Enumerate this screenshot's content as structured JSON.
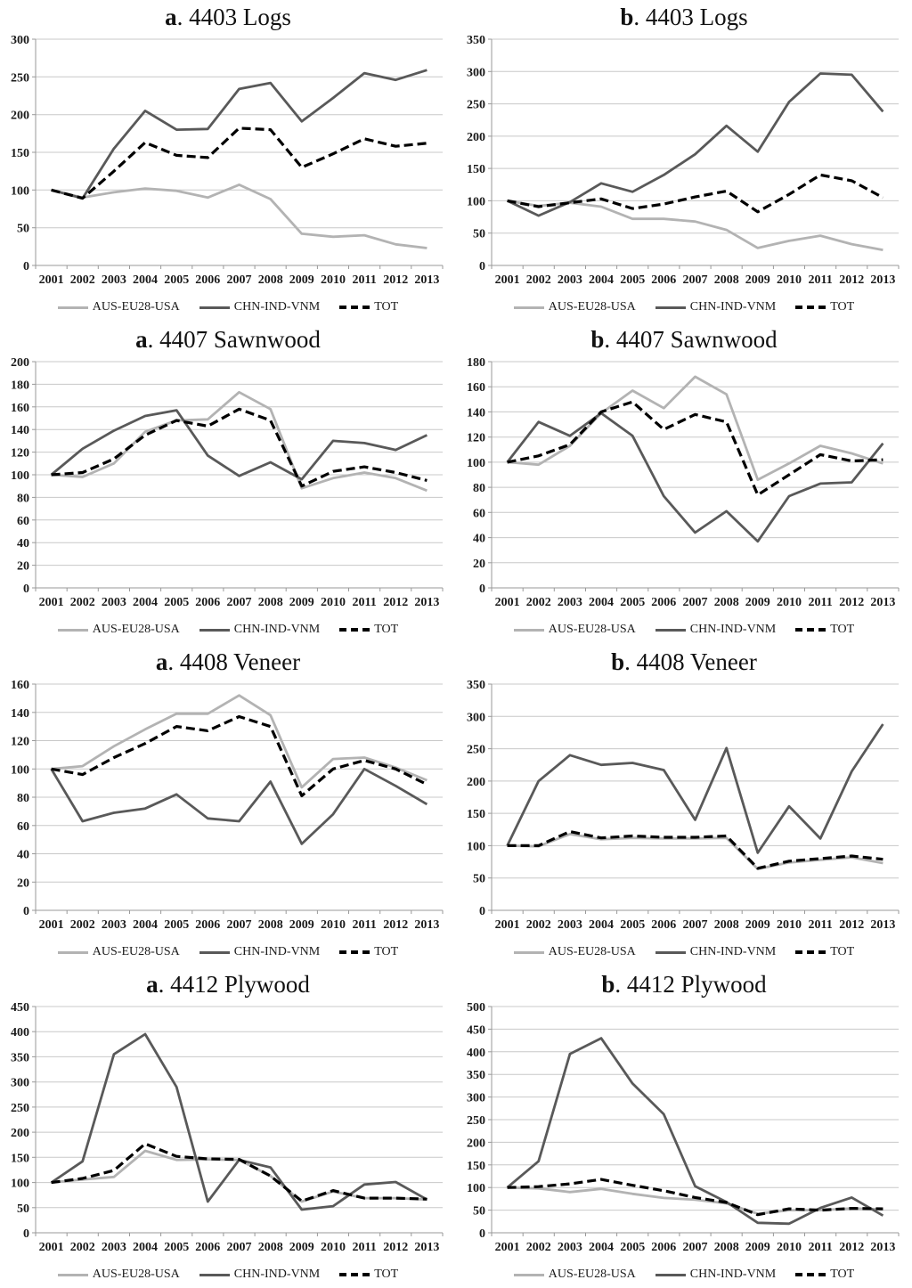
{
  "legend": {
    "position": "bottom",
    "items": [
      {
        "label": "AUS-EU28-USA",
        "color": "#b3b3b3",
        "dashed": false
      },
      {
        "label": "CHN-IND-VNM",
        "color": "#595959",
        "dashed": false
      },
      {
        "label": "TOT",
        "color": "#000000",
        "dashed": true
      }
    ]
  },
  "axis_style": {
    "grid_color": "#c8c8c8",
    "axis_color": "#999999",
    "grid": true
  },
  "chart_data": [
    {
      "type": "line",
      "panel": "a",
      "title_rest": ". 4403 Logs",
      "title": "a. 4403 Logs",
      "ylim": [
        0,
        300
      ],
      "ystep": 50,
      "categories": [
        "2001",
        "2002",
        "2003",
        "2004",
        "2005",
        "2006",
        "2007",
        "2008",
        "2009",
        "2010",
        "2011",
        "2012",
        "2013"
      ],
      "series": [
        {
          "name": "AUS-EU28-USA",
          "values": [
            100,
            90,
            97,
            102,
            99,
            90,
            107,
            88,
            42,
            38,
            40,
            28,
            23
          ]
        },
        {
          "name": "CHN-IND-VNM",
          "values": [
            100,
            89,
            155,
            205,
            180,
            181,
            234,
            242,
            191,
            222,
            255,
            246,
            259
          ]
        },
        {
          "name": "TOT",
          "values": [
            100,
            89,
            125,
            163,
            146,
            143,
            182,
            180,
            130,
            148,
            168,
            158,
            162
          ]
        }
      ]
    },
    {
      "type": "line",
      "panel": "b",
      "title_rest": ". 4403 Logs",
      "title": "b. 4403 Logs",
      "ylim": [
        0,
        350
      ],
      "ystep": 50,
      "categories": [
        "2001",
        "2002",
        "2003",
        "2004",
        "2005",
        "2006",
        "2007",
        "2008",
        "2009",
        "2010",
        "2011",
        "2012",
        "2013"
      ],
      "series": [
        {
          "name": "AUS-EU28-USA",
          "values": [
            100,
            92,
            97,
            91,
            72,
            72,
            68,
            55,
            27,
            38,
            46,
            33,
            24
          ]
        },
        {
          "name": "CHN-IND-VNM",
          "values": [
            100,
            77,
            98,
            127,
            114,
            140,
            172,
            216,
            176,
            253,
            297,
            295,
            238
          ]
        },
        {
          "name": "TOT",
          "values": [
            100,
            91,
            97,
            103,
            88,
            95,
            106,
            115,
            83,
            110,
            140,
            131,
            105
          ]
        }
      ]
    },
    {
      "type": "line",
      "panel": "a",
      "title_rest": ". 4407 Sawnwood",
      "title": "a. 4407 Sawnwood",
      "ylim": [
        0,
        200
      ],
      "ystep": 20,
      "categories": [
        "2001",
        "2002",
        "2003",
        "2004",
        "2005",
        "2006",
        "2007",
        "2008",
        "2009",
        "2010",
        "2011",
        "2012",
        "2013"
      ],
      "series": [
        {
          "name": "AUS-EU28-USA",
          "values": [
            100,
            98,
            110,
            138,
            148,
            149,
            173,
            158,
            88,
            97,
            102,
            97,
            86
          ]
        },
        {
          "name": "CHN-IND-VNM",
          "values": [
            100,
            123,
            139,
            152,
            157,
            117,
            99,
            111,
            96,
            130,
            128,
            122,
            135
          ]
        },
        {
          "name": "TOT",
          "values": [
            100,
            102,
            114,
            135,
            148,
            143,
            158,
            148,
            90,
            103,
            107,
            102,
            95
          ]
        }
      ]
    },
    {
      "type": "line",
      "panel": "b",
      "title_rest": ". 4407 Sawnwood",
      "title": "b. 4407 Sawnwood",
      "ylim": [
        0,
        180
      ],
      "ystep": 20,
      "categories": [
        "2001",
        "2002",
        "2003",
        "2004",
        "2005",
        "2006",
        "2007",
        "2008",
        "2009",
        "2010",
        "2011",
        "2012",
        "2013"
      ],
      "series": [
        {
          "name": "AUS-EU28-USA",
          "values": [
            100,
            98,
            113,
            139,
            157,
            143,
            168,
            154,
            86,
            99,
            113,
            107,
            99
          ]
        },
        {
          "name": "CHN-IND-VNM",
          "values": [
            100,
            132,
            121,
            139,
            121,
            73,
            44,
            61,
            37,
            73,
            83,
            84,
            115
          ]
        },
        {
          "name": "TOT",
          "values": [
            100,
            105,
            114,
            140,
            148,
            126,
            138,
            132,
            74,
            90,
            106,
            101,
            102
          ]
        }
      ]
    },
    {
      "type": "line",
      "panel": "a",
      "title_rest": ". 4408 Veneer",
      "title": "a. 4408 Veneer",
      "ylim": [
        0,
        160
      ],
      "ystep": 20,
      "categories": [
        "2001",
        "2002",
        "2003",
        "2004",
        "2005",
        "2006",
        "2007",
        "2008",
        "2009",
        "2010",
        "2011",
        "2012",
        "2013"
      ],
      "series": [
        {
          "name": "AUS-EU28-USA",
          "values": [
            100,
            102,
            116,
            128,
            139,
            139,
            152,
            138,
            87,
            107,
            108,
            101,
            92
          ]
        },
        {
          "name": "CHN-IND-VNM",
          "values": [
            100,
            63,
            69,
            72,
            82,
            65,
            63,
            91,
            47,
            68,
            100,
            88,
            75
          ]
        },
        {
          "name": "TOT",
          "values": [
            100,
            96,
            108,
            118,
            130,
            127,
            137,
            130,
            81,
            100,
            106,
            100,
            89
          ]
        }
      ]
    },
    {
      "type": "line",
      "panel": "b",
      "title_rest": ". 4408 Veneer",
      "title": "b. 4408 Veneer",
      "ylim": [
        0,
        350
      ],
      "ystep": 50,
      "categories": [
        "2001",
        "2002",
        "2003",
        "2004",
        "2005",
        "2006",
        "2007",
        "2008",
        "2009",
        "2010",
        "2011",
        "2012",
        "2013"
      ],
      "series": [
        {
          "name": "AUS-EU28-USA",
          "values": [
            100,
            99,
            118,
            110,
            112,
            111,
            111,
            112,
            64,
            74,
            78,
            82,
            73
          ]
        },
        {
          "name": "CHN-IND-VNM",
          "values": [
            100,
            200,
            240,
            225,
            228,
            217,
            140,
            251,
            89,
            161,
            111,
            215,
            288
          ]
        },
        {
          "name": "TOT",
          "values": [
            100,
            100,
            122,
            112,
            115,
            113,
            113,
            115,
            65,
            76,
            80,
            84,
            79
          ]
        }
      ]
    },
    {
      "type": "line",
      "panel": "a",
      "title_rest": ". 4412 Plywood",
      "title": "a. 4412 Plywood",
      "ylim": [
        0,
        450
      ],
      "ystep": 50,
      "categories": [
        "2001",
        "2002",
        "2003",
        "2004",
        "2005",
        "2006",
        "2007",
        "2008",
        "2009",
        "2010",
        "2011",
        "2012",
        "2013"
      ],
      "series": [
        {
          "name": "AUS-EU28-USA",
          "values": [
            100,
            106,
            111,
            163,
            145,
            146,
            145,
            113,
            62,
            82,
            69,
            69,
            66
          ]
        },
        {
          "name": "CHN-IND-VNM",
          "values": [
            100,
            142,
            355,
            395,
            290,
            62,
            145,
            130,
            46,
            53,
            96,
            101,
            66
          ]
        },
        {
          "name": "TOT",
          "values": [
            100,
            108,
            124,
            177,
            152,
            147,
            146,
            113,
            63,
            84,
            69,
            69,
            67
          ]
        }
      ]
    },
    {
      "type": "line",
      "panel": "b",
      "title_rest": ". 4412 Plywood",
      "title": "b. 4412 Plywood",
      "ylim": [
        0,
        500
      ],
      "ystep": 50,
      "categories": [
        "2001",
        "2002",
        "2003",
        "2004",
        "2005",
        "2006",
        "2007",
        "2008",
        "2009",
        "2010",
        "2011",
        "2012",
        "2013"
      ],
      "series": [
        {
          "name": "AUS-EU28-USA",
          "values": [
            100,
            98,
            90,
            97,
            86,
            77,
            73,
            65,
            42,
            50,
            50,
            54,
            52
          ]
        },
        {
          "name": "CHN-IND-VNM",
          "values": [
            100,
            158,
            395,
            430,
            330,
            262,
            103,
            68,
            22,
            20,
            55,
            78,
            38
          ]
        },
        {
          "name": "TOT",
          "values": [
            100,
            102,
            108,
            118,
            105,
            93,
            78,
            67,
            40,
            53,
            50,
            54,
            53
          ]
        }
      ]
    }
  ]
}
